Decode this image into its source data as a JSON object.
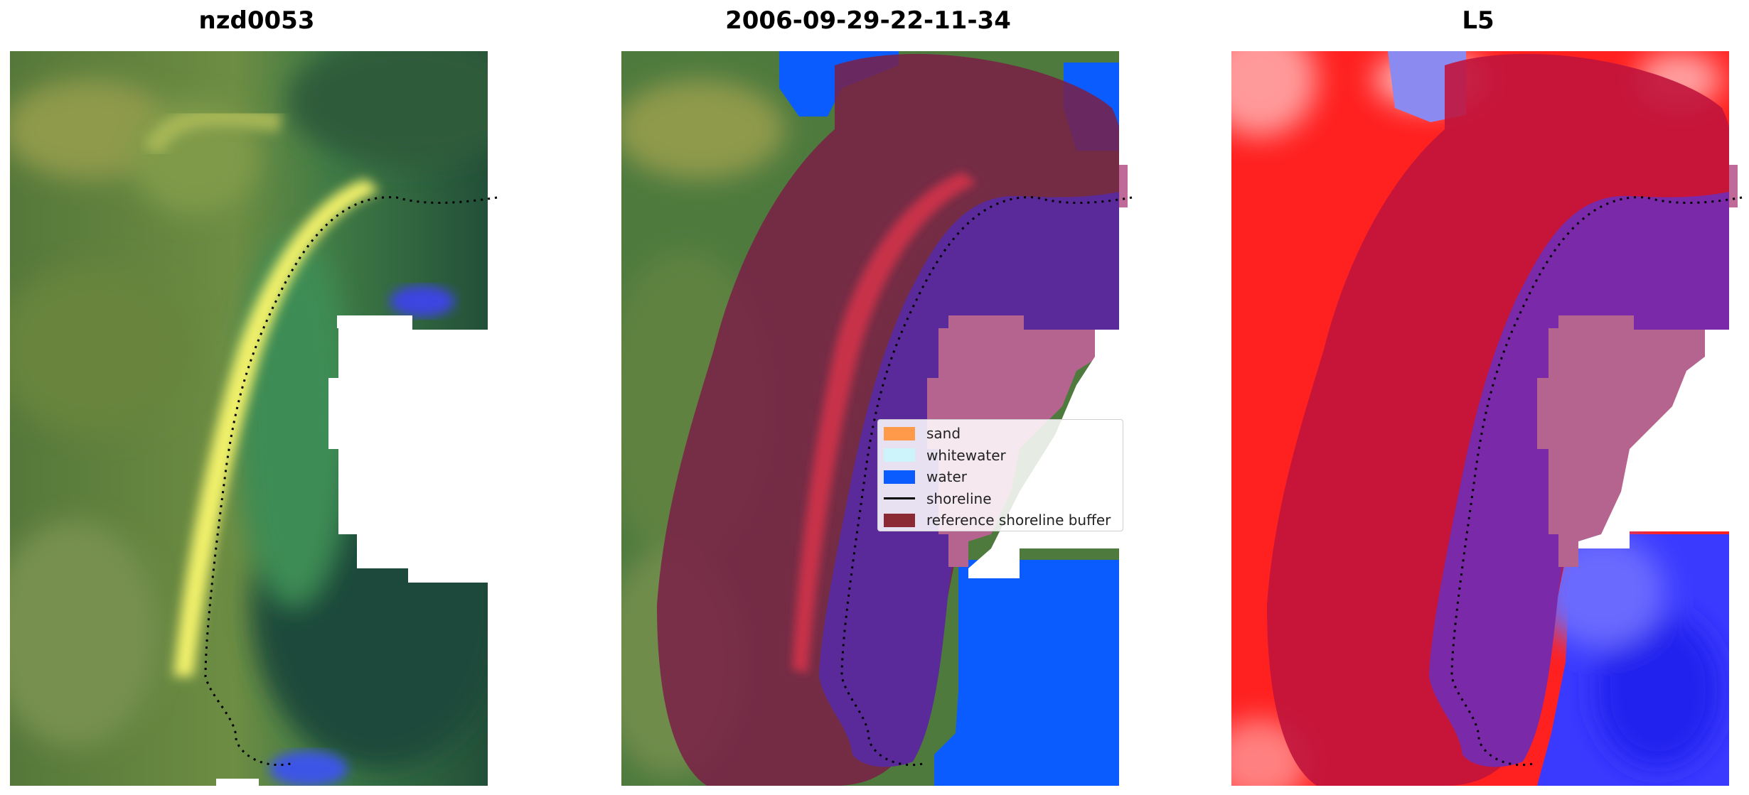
{
  "panels": [
    {
      "title": "nzd0053"
    },
    {
      "title": "2006-09-29-22-11-34"
    },
    {
      "title": "L5"
    }
  ],
  "legend": {
    "items": [
      {
        "label": "sand",
        "color": "#ff9a4a",
        "kind": "patch"
      },
      {
        "label": "whitewater",
        "color": "#cdf3fb",
        "kind": "patch"
      },
      {
        "label": "water",
        "color": "#0a5cff",
        "kind": "patch"
      },
      {
        "label": "shoreline",
        "color": "#000000",
        "kind": "line"
      },
      {
        "label": "reference shoreline buffer",
        "color": "#8b2a35",
        "kind": "patch"
      }
    ]
  },
  "colors": {
    "classified_water": "#0a5cff",
    "buffer": "#7a1f47",
    "overlap": "#5a2a9a",
    "nodata_pink": "#b56490",
    "index_land": "#ff1e1e",
    "index_water": "#2424ff"
  }
}
